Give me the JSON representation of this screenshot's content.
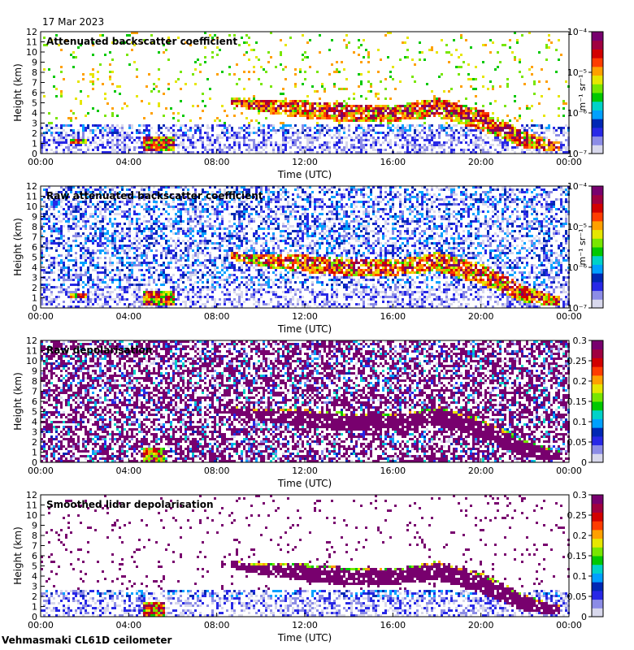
{
  "date": "17 Mar 2023",
  "instrument": "Vehmasmaki CL61D ceilometer",
  "colors": {
    "scale": [
      "#d8d8ec",
      "#8c8ce6",
      "#2828e6",
      "#0028b4",
      "#00a0ff",
      "#00d2c8",
      "#00c800",
      "#78e600",
      "#e6e600",
      "#ffa000",
      "#ff3c00",
      "#d20000",
      "#a00040",
      "#78006e"
    ],
    "plot_bg": "#ffffff"
  },
  "chart_data": [
    {
      "type": "heatmap",
      "title": "Attenuated backscatter coefficient",
      "xlabel": "Time (UTC)",
      "ylabel": "Height (km)",
      "x_ticks": [
        "00:00",
        "04:00",
        "08:00",
        "12:00",
        "16:00",
        "20:00",
        "00:00"
      ],
      "y_ticks": [
        "0",
        "1",
        "2",
        "3",
        "4",
        "5",
        "6",
        "7",
        "8",
        "9",
        "10",
        "11",
        "12"
      ],
      "xlim": [
        0,
        24
      ],
      "ylim": [
        0,
        12
      ],
      "colorbar": {
        "scale": "log",
        "range": [
          1e-07,
          0.0001
        ],
        "ticks": [
          "10⁻⁷",
          "10⁻⁶",
          "10⁻⁵",
          "10⁻⁴"
        ],
        "label": "m⁻¹ sr⁻¹"
      },
      "noise_top_km": 3.0,
      "noise_density": 0.55,
      "sparse_density": 0.06,
      "cloud_layer": [
        [
          8.6,
          4.9,
          5.6
        ],
        [
          10.0,
          4.2,
          5.3
        ],
        [
          12.0,
          3.6,
          5.3
        ],
        [
          14.0,
          3.2,
          5.0
        ],
        [
          16.0,
          3.3,
          4.8
        ],
        [
          18.0,
          3.7,
          5.6
        ],
        [
          20.0,
          2.4,
          4.4
        ],
        [
          22.0,
          0.6,
          2.2
        ],
        [
          23.5,
          0.3,
          1.2
        ]
      ],
      "low_features": [
        {
          "t": [
            1.3,
            2.0
          ],
          "z": [
            1.0,
            1.6
          ]
        },
        {
          "t": [
            4.6,
            6.0
          ],
          "z": [
            0.3,
            1.8
          ]
        }
      ]
    },
    {
      "type": "heatmap",
      "title": "Raw attenuated backscatter coefficient",
      "xlabel": "Time (UTC)",
      "ylabel": "Height (km)",
      "x_ticks": [
        "00:00",
        "04:00",
        "08:00",
        "12:00",
        "16:00",
        "20:00",
        "00:00"
      ],
      "y_ticks": [
        "0",
        "1",
        "2",
        "3",
        "4",
        "5",
        "6",
        "7",
        "8",
        "9",
        "10",
        "11",
        "12"
      ],
      "xlim": [
        0,
        24
      ],
      "ylim": [
        0,
        12
      ],
      "colorbar": {
        "scale": "log",
        "range": [
          1e-07,
          0.0001
        ],
        "ticks": [
          "10⁻⁷",
          "10⁻⁶",
          "10⁻⁵",
          "10⁻⁴"
        ],
        "label": "m⁻¹ sr⁻¹"
      },
      "noise_top_km": 12.0,
      "noise_density": 0.5,
      "sparse_density": 0.0,
      "cloud_layer": [
        [
          8.6,
          4.9,
          5.6
        ],
        [
          10.0,
          4.2,
          5.3
        ],
        [
          12.0,
          3.6,
          5.3
        ],
        [
          14.0,
          3.2,
          5.0
        ],
        [
          16.0,
          3.3,
          4.8
        ],
        [
          18.0,
          3.7,
          5.6
        ],
        [
          20.0,
          2.4,
          4.4
        ],
        [
          22.0,
          0.6,
          2.2
        ],
        [
          23.5,
          0.3,
          1.2
        ]
      ],
      "low_features": [
        {
          "t": [
            1.3,
            2.0
          ],
          "z": [
            1.0,
            1.6
          ]
        },
        {
          "t": [
            4.6,
            6.0
          ],
          "z": [
            0.3,
            1.8
          ]
        }
      ]
    },
    {
      "type": "heatmap",
      "title": "Raw depolarisation",
      "xlabel": "Time (UTC)",
      "ylabel": "Height (km)",
      "x_ticks": [
        "00:00",
        "04:00",
        "08:00",
        "12:00",
        "16:00",
        "20:00",
        "00:00"
      ],
      "y_ticks": [
        "0",
        "1",
        "2",
        "3",
        "4",
        "5",
        "6",
        "7",
        "8",
        "9",
        "10",
        "11",
        "12"
      ],
      "xlim": [
        0,
        24
      ],
      "ylim": [
        0,
        12
      ],
      "colorbar": {
        "scale": "linear",
        "range": [
          0,
          0.3
        ],
        "ticks": [
          "0",
          "0.05",
          "0.1",
          "0.15",
          "0.2",
          "0.25",
          "0.3"
        ],
        "label": ""
      },
      "noise_top_km": 12.0,
      "noise_density": 0.6,
      "sparse_density": 0.0,
      "cloud_layer": [
        [
          8.6,
          4.9,
          5.6
        ],
        [
          10.0,
          4.2,
          5.3
        ],
        [
          12.0,
          3.6,
          5.3
        ],
        [
          14.0,
          3.2,
          5.0
        ],
        [
          16.0,
          3.3,
          4.8
        ],
        [
          18.0,
          3.7,
          5.6
        ],
        [
          20.0,
          2.4,
          4.4
        ],
        [
          22.0,
          0.6,
          2.2
        ],
        [
          23.5,
          0.3,
          1.2
        ]
      ],
      "low_features": [
        {
          "t": [
            4.6,
            5.6
          ],
          "z": [
            0.0,
            1.6
          ]
        }
      ]
    },
    {
      "type": "heatmap",
      "title": "Smoothed lidar depolarisation",
      "xlabel": "Time (UTC)",
      "ylabel": "Height (km)",
      "x_ticks": [
        "00:00",
        "04:00",
        "08:00",
        "12:00",
        "16:00",
        "20:00",
        "00:00"
      ],
      "y_ticks": [
        "0",
        "1",
        "2",
        "3",
        "4",
        "5",
        "6",
        "7",
        "8",
        "9",
        "10",
        "11",
        "12"
      ],
      "xlim": [
        0,
        24
      ],
      "ylim": [
        0,
        12
      ],
      "colorbar": {
        "scale": "linear",
        "range": [
          0,
          0.3
        ],
        "ticks": [
          "0",
          "0.05",
          "0.1",
          "0.15",
          "0.2",
          "0.25",
          "0.3"
        ],
        "label": ""
      },
      "noise_top_km": 2.8,
      "noise_density": 0.5,
      "sparse_density": 0.05,
      "cloud_layer": [
        [
          8.6,
          4.9,
          5.6
        ],
        [
          10.0,
          4.2,
          5.3
        ],
        [
          12.0,
          3.6,
          5.3
        ],
        [
          14.0,
          3.2,
          5.0
        ],
        [
          16.0,
          3.3,
          4.8
        ],
        [
          18.0,
          3.7,
          5.6
        ],
        [
          20.0,
          2.4,
          4.4
        ],
        [
          22.0,
          0.6,
          2.2
        ],
        [
          23.5,
          0.3,
          1.2
        ]
      ],
      "low_features": [
        {
          "t": [
            4.6,
            5.6
          ],
          "z": [
            0.0,
            1.6
          ]
        }
      ]
    }
  ]
}
